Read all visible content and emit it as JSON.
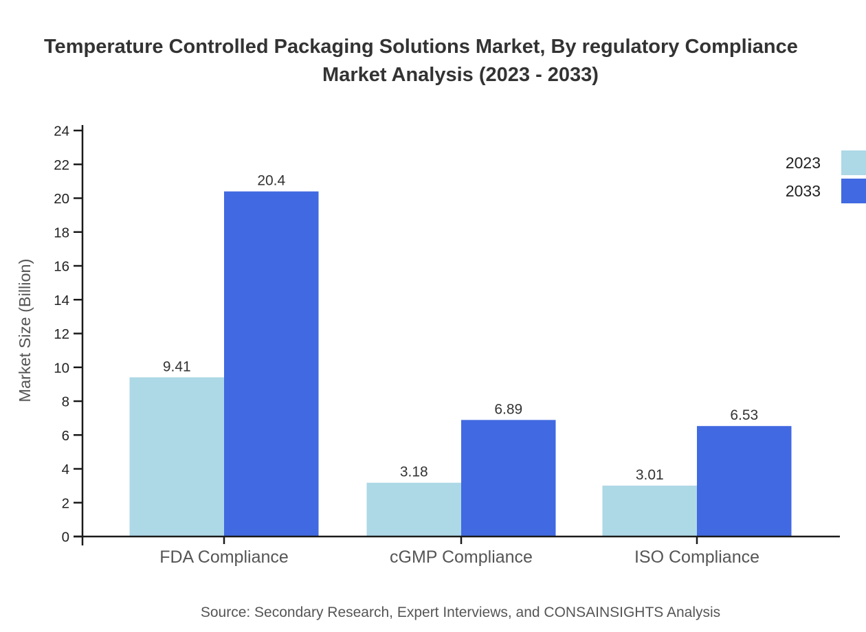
{
  "title": {
    "line1": "Temperature Controlled Packaging Solutions Market, By regulatory Compliance",
    "line2": "Market Analysis (2023 - 2033)"
  },
  "legend": {
    "items": [
      {
        "label": "2023",
        "color": "#ADD8E6"
      },
      {
        "label": "2033",
        "color": "#4169E1"
      }
    ]
  },
  "source_note": "Source: Secondary Research, Expert Interviews, and CONSAINSIGHTS Analysis",
  "chart_data": {
    "type": "bar",
    "title": "Temperature Controlled Packaging Solutions Market, By regulatory Compliance Market Analysis (2023 - 2033)",
    "categories": [
      "FDA Compliance",
      "cGMP Compliance",
      "ISO Compliance"
    ],
    "series": [
      {
        "name": "2023",
        "color": "#ADD8E6",
        "values": [
          9.41,
          3.18,
          3.01
        ],
        "value_labels": [
          "9.41",
          "3.18",
          "3.01"
        ]
      },
      {
        "name": "2033",
        "color": "#4169E1",
        "values": [
          20.4,
          6.89,
          6.53
        ],
        "value_labels": [
          "20.4",
          "6.89",
          "6.53"
        ]
      }
    ],
    "xlabel": "",
    "ylabel": "Market Size (Billion)",
    "ylim": [
      0,
      24
    ],
    "yticks": [
      0,
      2,
      4,
      6,
      8,
      10,
      12,
      14,
      16,
      18,
      20,
      22,
      24
    ],
    "grid": false,
    "legend_position": "top-right",
    "value_labels_shown": true
  },
  "colors": {
    "series_2023": "#ADD8E6",
    "series_2033": "#4169E1",
    "axis": "#1a1a1a",
    "title_text": "#333333",
    "muted_text": "#555555",
    "tick_text": "#222222",
    "value_label_text": "#333333",
    "background": "#ffffff"
  }
}
